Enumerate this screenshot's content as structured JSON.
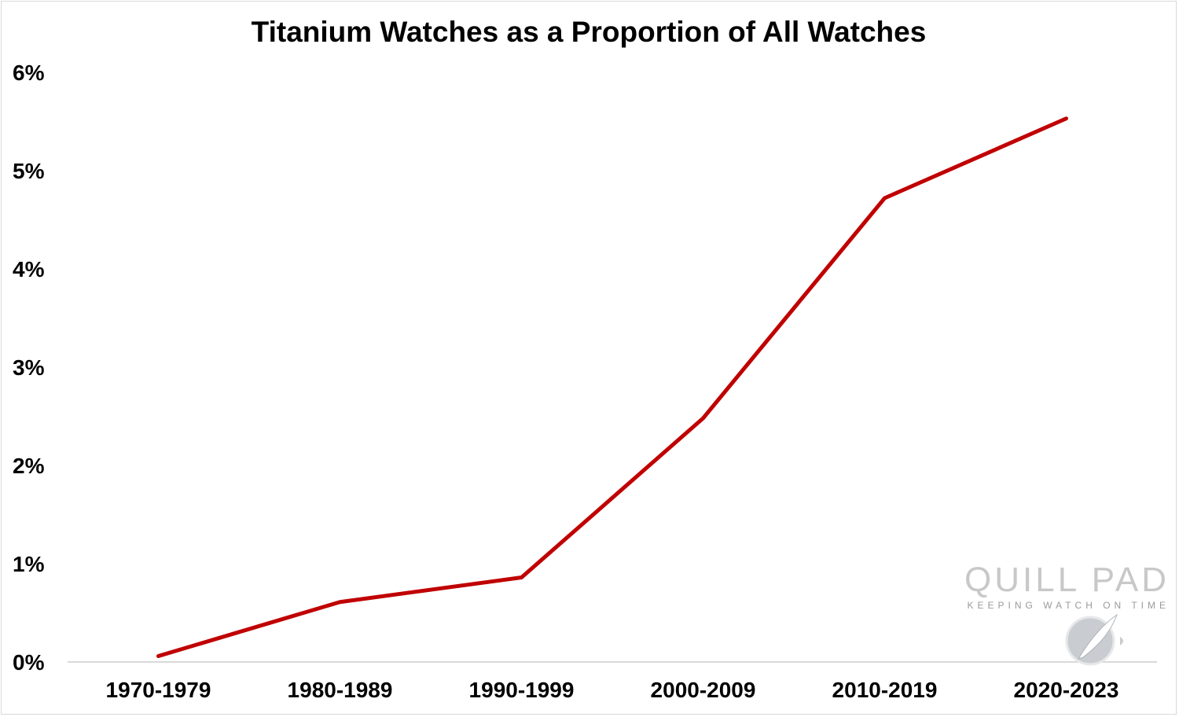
{
  "chart_data": {
    "type": "line",
    "title": "Titanium Watches as a Proportion of All Watches",
    "xlabel": "",
    "ylabel": "",
    "categories": [
      "1970-1979",
      "1980-1989",
      "1990-1999",
      "2000-2009",
      "2010-2019",
      "2020-2023"
    ],
    "series": [
      {
        "values": [
          0.06,
          0.61,
          0.86,
          2.48,
          4.72,
          5.53
        ],
        "color": "#c00000"
      }
    ],
    "ylim": [
      0,
      6
    ],
    "yticks": [
      0,
      1,
      2,
      3,
      4,
      5,
      6
    ],
    "ytick_labels": [
      "0%",
      "1%",
      "2%",
      "3%",
      "4%",
      "5%",
      "6%"
    ],
    "grid": false,
    "legend": "none"
  },
  "watermark": {
    "brand": "QUILL PAD",
    "tagline": "KEEPING WATCH ON TIME"
  }
}
